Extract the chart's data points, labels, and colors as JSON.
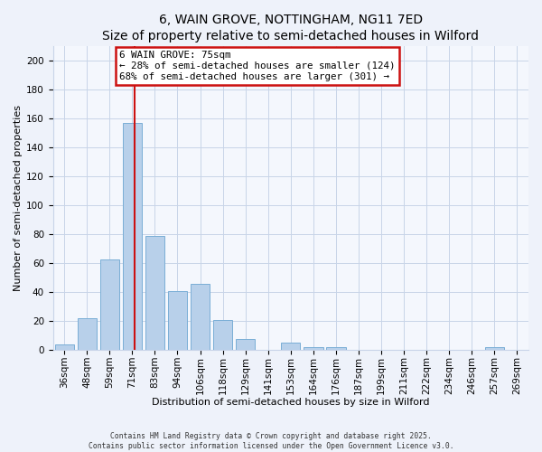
{
  "title": "6, WAIN GROVE, NOTTINGHAM, NG11 7ED",
  "subtitle": "Size of property relative to semi-detached houses in Wilford",
  "xlabel": "Distribution of semi-detached houses by size in Wilford",
  "ylabel": "Number of semi-detached properties",
  "bar_labels": [
    "36sqm",
    "48sqm",
    "59sqm",
    "71sqm",
    "83sqm",
    "94sqm",
    "106sqm",
    "118sqm",
    "129sqm",
    "141sqm",
    "153sqm",
    "164sqm",
    "176sqm",
    "187sqm",
    "199sqm",
    "211sqm",
    "222sqm",
    "234sqm",
    "246sqm",
    "257sqm",
    "269sqm"
  ],
  "bar_values": [
    4,
    22,
    63,
    157,
    79,
    41,
    46,
    21,
    8,
    0,
    5,
    2,
    2,
    0,
    0,
    0,
    0,
    0,
    0,
    2,
    0
  ],
  "bar_color": "#b8d0ea",
  "bar_edge_color": "#7aaed6",
  "annotation_box_text": "6 WAIN GROVE: 75sqm\n← 28% of semi-detached houses are smaller (124)\n68% of semi-detached houses are larger (301) →",
  "annotation_box_facecolor": "#ffffff",
  "annotation_box_edgecolor": "#cc1111",
  "vline_color": "#cc1111",
  "ylim": [
    0,
    210
  ],
  "yticks": [
    0,
    20,
    40,
    60,
    80,
    100,
    120,
    140,
    160,
    180,
    200
  ],
  "footer_line1": "Contains HM Land Registry data © Crown copyright and database right 2025.",
  "footer_line2": "Contains public sector information licensed under the Open Government Licence v3.0.",
  "bg_color": "#eef2fa",
  "plot_bg_color": "#f4f7fd",
  "grid_color": "#c8d4e8",
  "title_fontsize": 10,
  "subtitle_fontsize": 9,
  "axis_label_fontsize": 8,
  "tick_fontsize": 7.5
}
